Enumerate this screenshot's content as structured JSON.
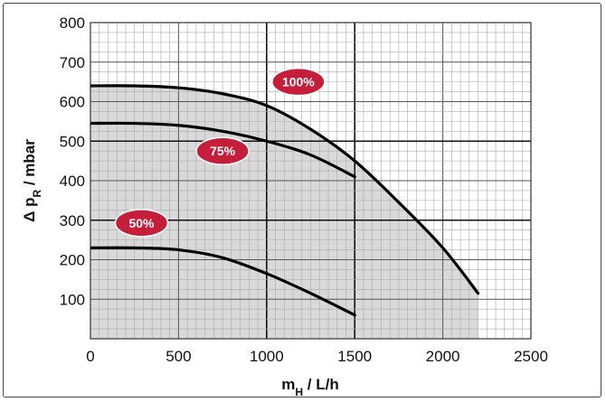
{
  "chart_data": {
    "type": "line",
    "xlabel": "m_H / L/h",
    "ylabel": "Δ p_R / mbar",
    "xlim": [
      0,
      2500
    ],
    "ylim": [
      0,
      800
    ],
    "x_ticks": [
      "0",
      "500",
      "1000",
      "1500",
      "2000",
      "2500"
    ],
    "y_ticks": [
      "100",
      "200",
      "300",
      "400",
      "500",
      "600",
      "700",
      "800"
    ],
    "grid": true,
    "shaded_operating_region": true,
    "colors": {
      "curve": "#000000",
      "badge": "#c41e3a",
      "shade": "#d9d9d9"
    },
    "series": [
      {
        "name": "100%",
        "x": [
          0,
          250,
          500,
          750,
          1000,
          1250,
          1500,
          1750,
          2000,
          2200
        ],
        "y": [
          640,
          640,
          635,
          620,
          590,
          530,
          450,
          345,
          230,
          115
        ]
      },
      {
        "name": "75%",
        "x": [
          0,
          250,
          500,
          750,
          1000,
          1250,
          1500
        ],
        "y": [
          545,
          545,
          540,
          525,
          500,
          465,
          410
        ]
      },
      {
        "name": "50%",
        "x": [
          0,
          250,
          500,
          750,
          1000,
          1250,
          1500
        ],
        "y": [
          230,
          230,
          225,
          205,
          165,
          115,
          60
        ]
      }
    ]
  }
}
